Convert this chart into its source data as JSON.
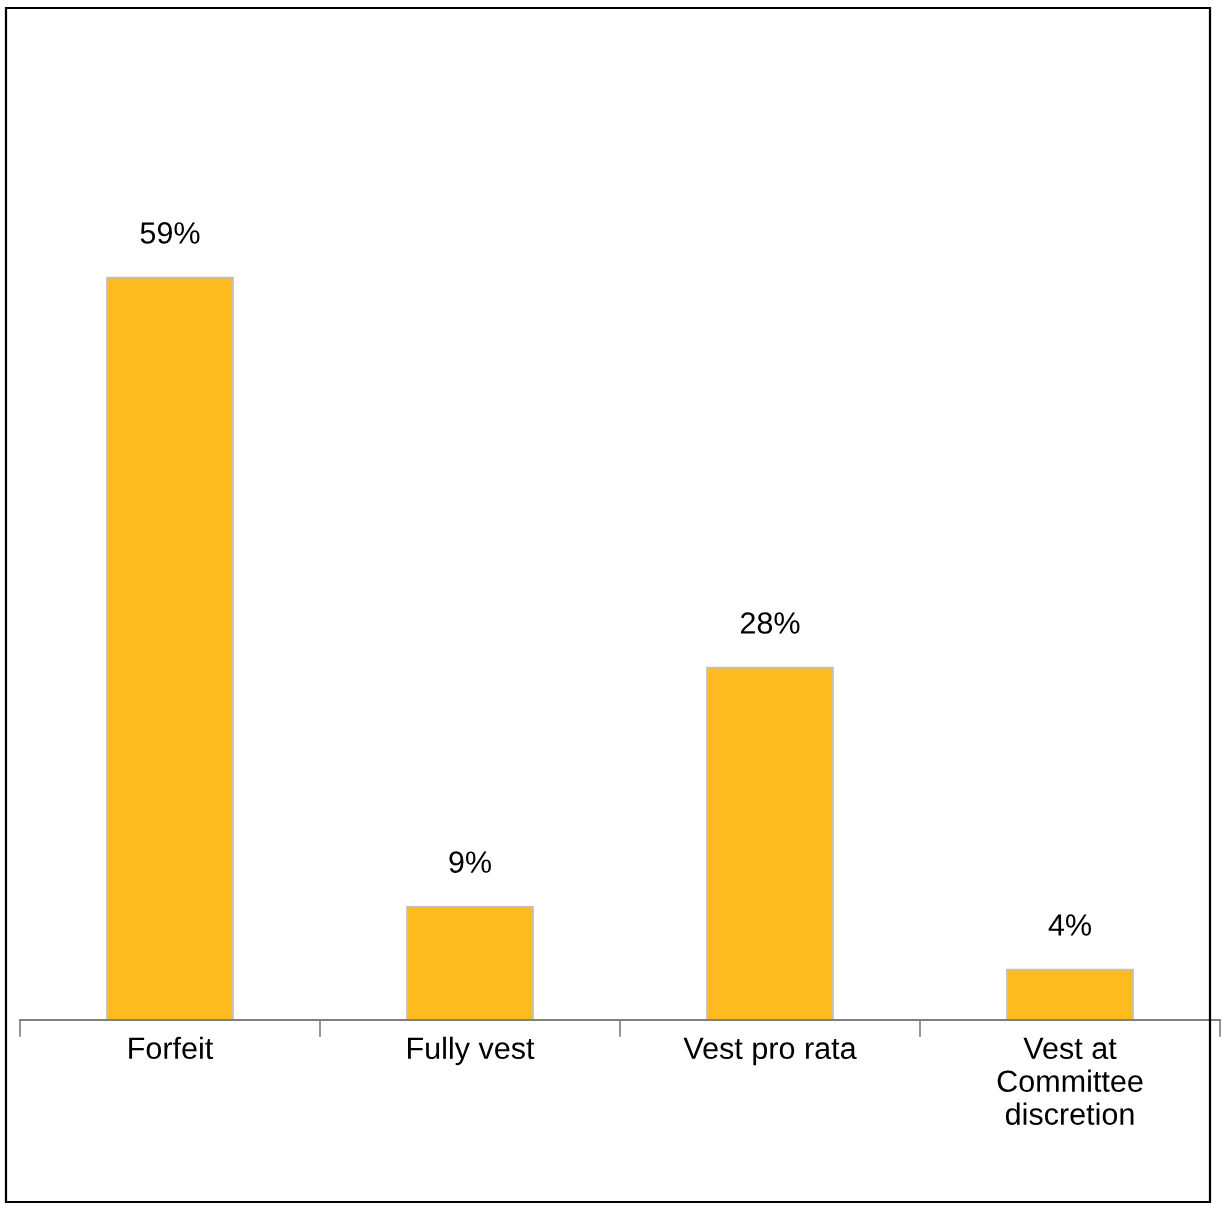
{
  "chart_data": {
    "type": "bar",
    "categories": [
      "Forfeit",
      "Fully vest",
      "Vest pro rata",
      "Vest at\nCommittee\ndiscretion"
    ],
    "values": [
      59,
      9,
      28,
      4
    ],
    "color": "#fdbb1f",
    "data_labels": true,
    "value_labels": [
      "59%",
      "9%",
      "28%",
      "4%"
    ],
    "tick_labels": "x",
    "grid": false,
    "legend": false
  }
}
